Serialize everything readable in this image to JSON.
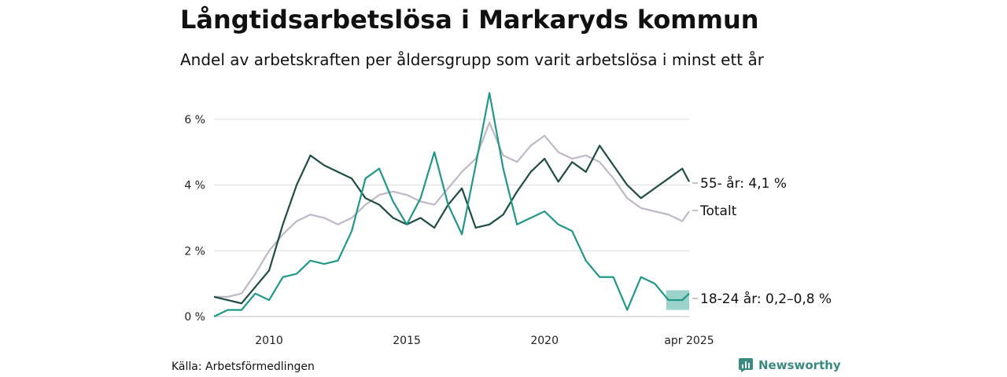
{
  "title": "Långtidsarbetslösa i Markaryds kommun",
  "subtitle": "Andel av arbetskraften per åldersgrupp som varit arbetslösa i minst ett år",
  "source": "Källa: Arbetsförmedlingen",
  "brand": {
    "name": "Newsworthy",
    "icon": "bar-chart-badge-icon",
    "color": "#3a8a80"
  },
  "chart_data": {
    "type": "line",
    "title": "Långtidsarbetslösa i Markaryds kommun",
    "subtitle": "Andel av arbetskraften per åldersgrupp som varit arbetslösa i minst ett år",
    "xlabel": "",
    "ylabel": "",
    "xlim": [
      "2008-01",
      "2025-04"
    ],
    "ylim": [
      0,
      7
    ],
    "y_ticks": [
      0,
      2,
      4,
      6
    ],
    "y_tick_labels": [
      "0 %",
      "2 %",
      "4 %",
      "6 %"
    ],
    "x_ticks": [
      "2010-01",
      "2015-01",
      "2020-01",
      "2025-04"
    ],
    "x_tick_labels": [
      "2010",
      "2015",
      "2020",
      "apr 2025"
    ],
    "grid": true,
    "legend": "none (labels at line ends)",
    "series": [
      {
        "name": "Totalt",
        "end_label": "Totalt",
        "color": "#bfb8c6",
        "points": [
          [
            "2008-01",
            0.6
          ],
          [
            "2008-07",
            0.6
          ],
          [
            "2009-01",
            0.7
          ],
          [
            "2009-07",
            1.3
          ],
          [
            "2010-01",
            2.0
          ],
          [
            "2010-07",
            2.5
          ],
          [
            "2011-01",
            2.9
          ],
          [
            "2011-07",
            3.1
          ],
          [
            "2012-01",
            3.0
          ],
          [
            "2012-07",
            2.8
          ],
          [
            "2013-01",
            3.0
          ],
          [
            "2013-07",
            3.4
          ],
          [
            "2014-01",
            3.7
          ],
          [
            "2014-07",
            3.8
          ],
          [
            "2015-01",
            3.7
          ],
          [
            "2015-07",
            3.5
          ],
          [
            "2016-01",
            3.4
          ],
          [
            "2016-07",
            3.9
          ],
          [
            "2017-01",
            4.4
          ],
          [
            "2017-07",
            4.8
          ],
          [
            "2018-01",
            5.9
          ],
          [
            "2018-07",
            4.9
          ],
          [
            "2019-01",
            4.7
          ],
          [
            "2019-07",
            5.2
          ],
          [
            "2020-01",
            5.5
          ],
          [
            "2020-07",
            5.0
          ],
          [
            "2021-01",
            4.8
          ],
          [
            "2021-07",
            4.9
          ],
          [
            "2022-01",
            4.7
          ],
          [
            "2022-07",
            4.2
          ],
          [
            "2023-01",
            3.6
          ],
          [
            "2023-07",
            3.3
          ],
          [
            "2024-01",
            3.2
          ],
          [
            "2024-07",
            3.1
          ],
          [
            "2025-01",
            2.9
          ],
          [
            "2025-04",
            3.2
          ]
        ]
      },
      {
        "name": "55- år",
        "end_label": "55- år: 4,1 %",
        "color": "#1f4d44",
        "points": [
          [
            "2008-01",
            0.6
          ],
          [
            "2008-07",
            0.5
          ],
          [
            "2009-01",
            0.4
          ],
          [
            "2009-07",
            0.9
          ],
          [
            "2010-01",
            1.4
          ],
          [
            "2010-07",
            2.8
          ],
          [
            "2011-01",
            4.0
          ],
          [
            "2011-07",
            4.9
          ],
          [
            "2012-01",
            4.6
          ],
          [
            "2012-07",
            4.4
          ],
          [
            "2013-01",
            4.2
          ],
          [
            "2013-07",
            3.6
          ],
          [
            "2014-01",
            3.4
          ],
          [
            "2014-07",
            3.0
          ],
          [
            "2015-01",
            2.8
          ],
          [
            "2015-07",
            3.0
          ],
          [
            "2016-01",
            2.7
          ],
          [
            "2016-07",
            3.4
          ],
          [
            "2017-01",
            3.9
          ],
          [
            "2017-07",
            2.7
          ],
          [
            "2018-01",
            2.8
          ],
          [
            "2018-07",
            3.1
          ],
          [
            "2019-01",
            3.8
          ],
          [
            "2019-07",
            4.4
          ],
          [
            "2020-01",
            4.8
          ],
          [
            "2020-07",
            4.1
          ],
          [
            "2021-01",
            4.7
          ],
          [
            "2021-07",
            4.4
          ],
          [
            "2022-01",
            5.2
          ],
          [
            "2022-07",
            4.6
          ],
          [
            "2023-01",
            4.0
          ],
          [
            "2023-07",
            3.6
          ],
          [
            "2024-01",
            3.9
          ],
          [
            "2024-07",
            4.2
          ],
          [
            "2025-01",
            4.5
          ],
          [
            "2025-04",
            4.1
          ]
        ]
      },
      {
        "name": "18-24 år",
        "end_label": "18-24 år: 0,2–0,8 %",
        "color": "#21978a",
        "band_color": "#82c8be",
        "points": [
          [
            "2008-01",
            0.0
          ],
          [
            "2008-07",
            0.2
          ],
          [
            "2009-01",
            0.2
          ],
          [
            "2009-07",
            0.7
          ],
          [
            "2010-01",
            0.5
          ],
          [
            "2010-07",
            1.2
          ],
          [
            "2011-01",
            1.3
          ],
          [
            "2011-07",
            1.7
          ],
          [
            "2012-01",
            1.6
          ],
          [
            "2012-07",
            1.7
          ],
          [
            "2013-01",
            2.6
          ],
          [
            "2013-07",
            4.2
          ],
          [
            "2014-01",
            4.5
          ],
          [
            "2014-07",
            3.5
          ],
          [
            "2015-01",
            2.8
          ],
          [
            "2015-07",
            3.6
          ],
          [
            "2016-01",
            5.0
          ],
          [
            "2016-07",
            3.4
          ],
          [
            "2017-01",
            2.5
          ],
          [
            "2017-07",
            4.6
          ],
          [
            "2018-01",
            6.8
          ],
          [
            "2018-07",
            4.5
          ],
          [
            "2019-01",
            2.8
          ],
          [
            "2019-07",
            3.0
          ],
          [
            "2020-01",
            3.2
          ],
          [
            "2020-07",
            2.8
          ],
          [
            "2021-01",
            2.6
          ],
          [
            "2021-07",
            1.7
          ],
          [
            "2022-01",
            1.2
          ],
          [
            "2022-07",
            1.2
          ],
          [
            "2023-01",
            0.2
          ],
          [
            "2023-07",
            1.2
          ],
          [
            "2024-01",
            1.0
          ],
          [
            "2024-07",
            0.5
          ],
          [
            "2025-01",
            0.5
          ],
          [
            "2025-04",
            0.7
          ]
        ],
        "band": [
          [
            "2024-06",
            0.2,
            0.8
          ],
          [
            "2025-04",
            0.2,
            0.8
          ]
        ]
      }
    ]
  }
}
